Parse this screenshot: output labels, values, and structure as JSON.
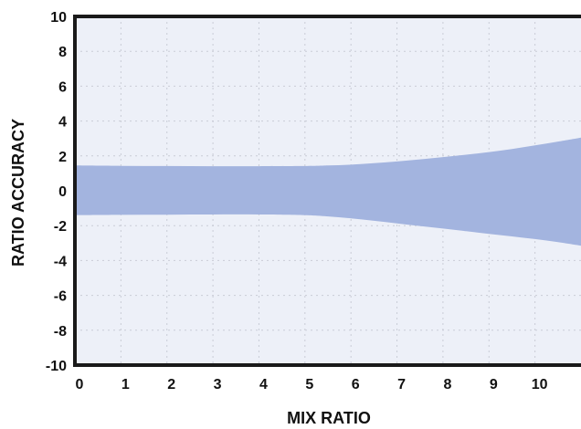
{
  "chart_data": {
    "type": "area",
    "title": "",
    "xlabel": "MIX RATIO",
    "ylabel": "RATIO ACCURACY",
    "xlim": [
      0,
      11
    ],
    "ylim": [
      -10,
      10
    ],
    "x_ticks": [
      "0",
      "1",
      "2",
      "3",
      "4",
      "5",
      "6",
      "7",
      "8",
      "9",
      "10"
    ],
    "y_ticks": [
      "10",
      "8",
      "6",
      "4",
      "2",
      "0",
      "-2",
      "-4",
      "-6",
      "-8",
      "-10"
    ],
    "grid": true,
    "legend": "none",
    "series": [
      {
        "x": [
          0,
          1,
          2,
          3,
          4,
          5,
          5.5,
          6,
          6.5,
          7,
          7.5,
          8,
          8.5,
          9,
          9.5,
          10,
          10.5,
          11
        ],
        "upper": [
          1.45,
          1.43,
          1.42,
          1.41,
          1.41,
          1.42,
          1.45,
          1.5,
          1.58,
          1.68,
          1.8,
          1.93,
          2.07,
          2.22,
          2.4,
          2.6,
          2.82,
          3.05
        ],
        "lower": [
          -1.4,
          -1.38,
          -1.37,
          -1.36,
          -1.36,
          -1.4,
          -1.47,
          -1.58,
          -1.72,
          -1.87,
          -2.02,
          -2.17,
          -2.32,
          -2.47,
          -2.62,
          -2.77,
          -2.95,
          -3.15
        ]
      }
    ],
    "colors": {
      "band": "#a3b4df",
      "plot_background": "#edf0f8",
      "grid": "#c9ccd6",
      "axis": "#1a1a1a"
    }
  }
}
